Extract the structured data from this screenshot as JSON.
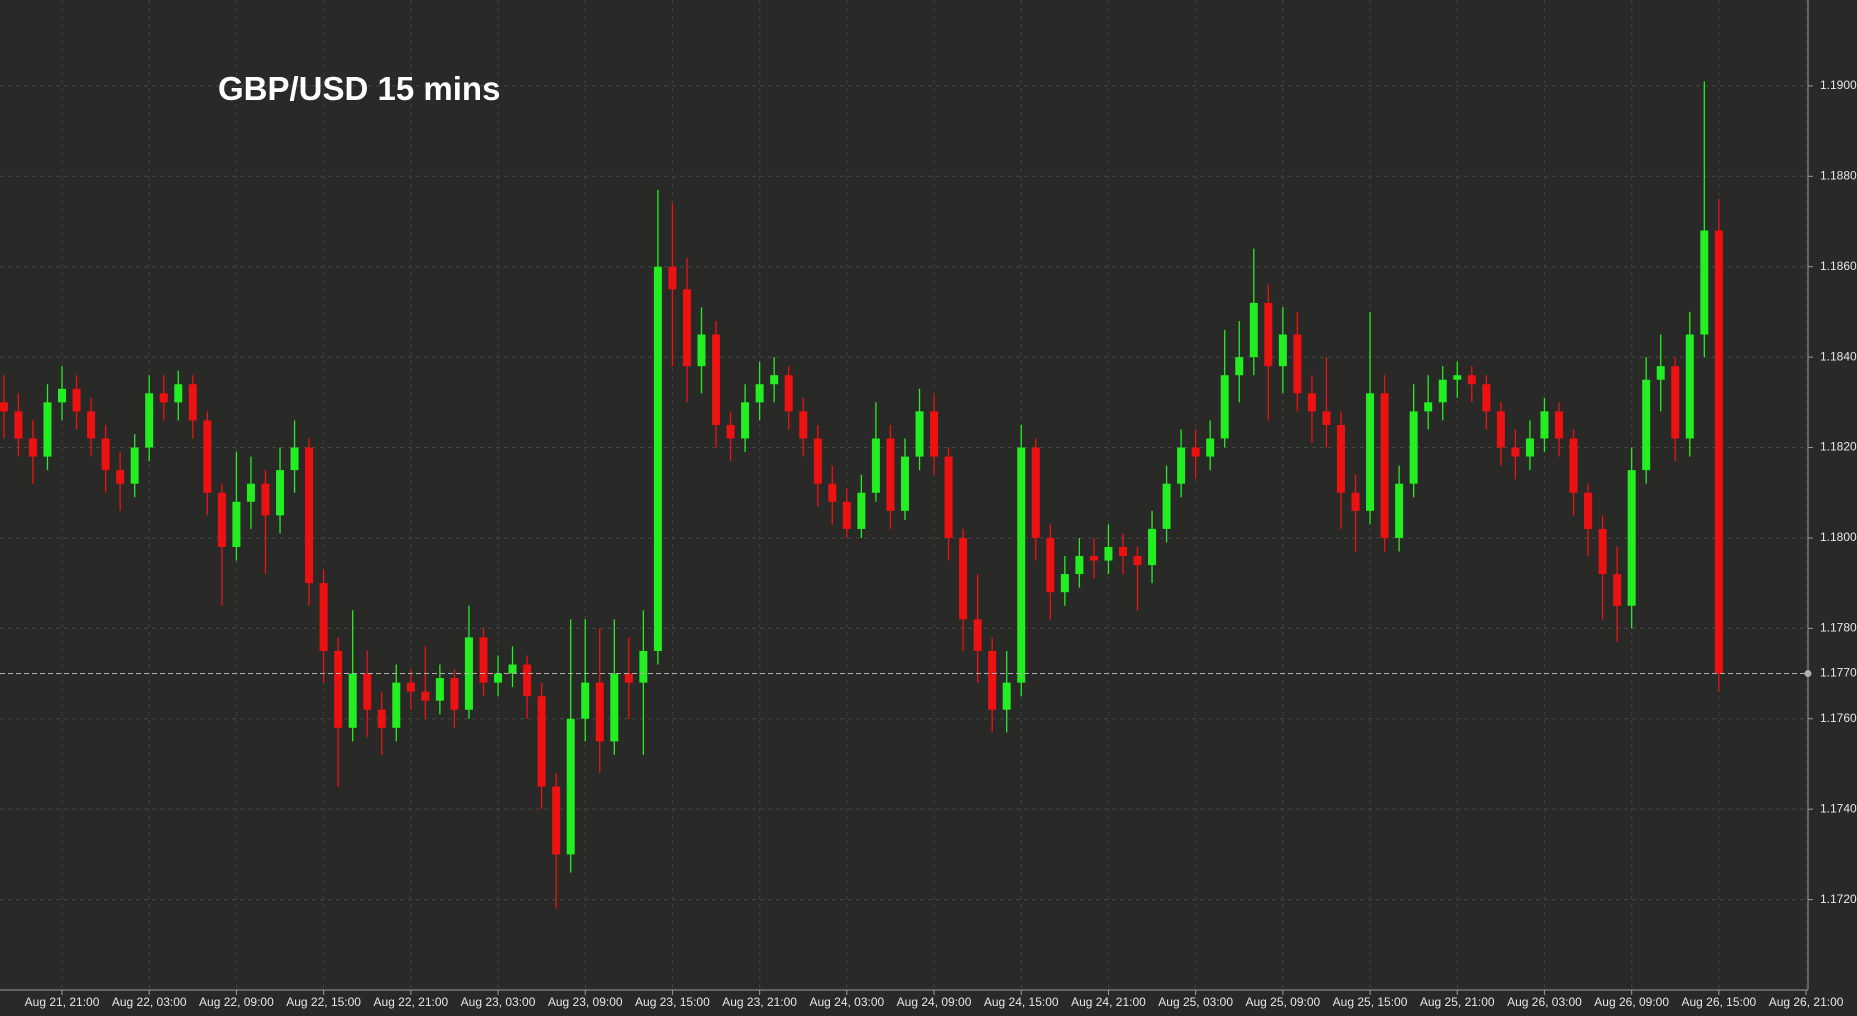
{
  "chart_data": {
    "type": "candlestick",
    "title": "GBP/USD 15 mins",
    "x": [
      "Aug 21, 17:00",
      "Aug 21, 18:00",
      "Aug 21, 19:00",
      "Aug 21, 20:00",
      "Aug 21, 21:00",
      "Aug 21, 22:00",
      "Aug 21, 23:00",
      "Aug 22, 00:00",
      "Aug 22, 01:00",
      "Aug 22, 02:00",
      "Aug 22, 03:00",
      "Aug 22, 04:00",
      "Aug 22, 05:00",
      "Aug 22, 06:00",
      "Aug 22, 07:00",
      "Aug 22, 08:00",
      "Aug 22, 09:00",
      "Aug 22, 10:00",
      "Aug 22, 11:00",
      "Aug 22, 12:00",
      "Aug 22, 13:00",
      "Aug 22, 14:00",
      "Aug 22, 15:00",
      "Aug 22, 16:00",
      "Aug 22, 17:00",
      "Aug 22, 18:00",
      "Aug 22, 19:00",
      "Aug 22, 20:00",
      "Aug 22, 21:00",
      "Aug 22, 22:00",
      "Aug 22, 23:00",
      "Aug 23, 00:00",
      "Aug 23, 01:00",
      "Aug 23, 02:00",
      "Aug 23, 03:00",
      "Aug 23, 04:00",
      "Aug 23, 05:00",
      "Aug 23, 06:00",
      "Aug 23, 07:00",
      "Aug 23, 08:00",
      "Aug 23, 09:00",
      "Aug 23, 10:00",
      "Aug 23, 11:00",
      "Aug 23, 12:00",
      "Aug 23, 13:00",
      "Aug 23, 14:00",
      "Aug 23, 15:00",
      "Aug 23, 16:00",
      "Aug 23, 17:00",
      "Aug 23, 18:00",
      "Aug 23, 19:00",
      "Aug 23, 20:00",
      "Aug 23, 21:00",
      "Aug 23, 22:00",
      "Aug 23, 23:00",
      "Aug 24, 00:00",
      "Aug 24, 01:00",
      "Aug 24, 02:00",
      "Aug 24, 03:00",
      "Aug 24, 04:00",
      "Aug 24, 05:00",
      "Aug 24, 06:00",
      "Aug 24, 07:00",
      "Aug 24, 08:00",
      "Aug 24, 09:00",
      "Aug 24, 10:00",
      "Aug 24, 11:00",
      "Aug 24, 12:00",
      "Aug 24, 13:00",
      "Aug 24, 14:00",
      "Aug 24, 15:00",
      "Aug 24, 16:00",
      "Aug 24, 17:00",
      "Aug 24, 18:00",
      "Aug 24, 19:00",
      "Aug 24, 20:00",
      "Aug 24, 21:00",
      "Aug 24, 22:00",
      "Aug 24, 23:00",
      "Aug 25, 00:00",
      "Aug 25, 01:00",
      "Aug 25, 02:00",
      "Aug 25, 03:00",
      "Aug 25, 04:00",
      "Aug 25, 05:00",
      "Aug 25, 06:00",
      "Aug 25, 07:00",
      "Aug 25, 08:00",
      "Aug 25, 09:00",
      "Aug 25, 10:00",
      "Aug 25, 11:00",
      "Aug 25, 12:00",
      "Aug 25, 13:00",
      "Aug 25, 14:00",
      "Aug 25, 15:00",
      "Aug 25, 16:00",
      "Aug 25, 17:00",
      "Aug 25, 18:00",
      "Aug 25, 19:00",
      "Aug 25, 20:00",
      "Aug 25, 21:00",
      "Aug 25, 22:00",
      "Aug 25, 23:00",
      "Aug 26, 00:00",
      "Aug 26, 01:00",
      "Aug 26, 02:00",
      "Aug 26, 03:00",
      "Aug 26, 04:00",
      "Aug 26, 05:00",
      "Aug 26, 06:00",
      "Aug 26, 07:00",
      "Aug 26, 08:00",
      "Aug 26, 09:00",
      "Aug 26, 10:00",
      "Aug 26, 11:00",
      "Aug 26, 12:00",
      "Aug 26, 13:00",
      "Aug 26, 14:00",
      "Aug 26, 15:00"
    ],
    "open": [
      1.183,
      1.1828,
      1.1822,
      1.1818,
      1.183,
      1.1833,
      1.1828,
      1.1822,
      1.1815,
      1.1812,
      1.182,
      1.1832,
      1.183,
      1.1834,
      1.1826,
      1.181,
      1.1798,
      1.1808,
      1.1812,
      1.1805,
      1.1815,
      1.182,
      1.179,
      1.1775,
      1.1758,
      1.177,
      1.1762,
      1.1758,
      1.1768,
      1.1766,
      1.1764,
      1.1769,
      1.1762,
      1.1778,
      1.1768,
      1.177,
      1.1772,
      1.1765,
      1.1745,
      1.173,
      1.176,
      1.1768,
      1.1755,
      1.177,
      1.1768,
      1.1775,
      1.186,
      1.1855,
      1.1838,
      1.1845,
      1.1825,
      1.1822,
      1.183,
      1.1834,
      1.1836,
      1.1828,
      1.1822,
      1.1812,
      1.1808,
      1.1802,
      1.181,
      1.1822,
      1.1806,
      1.1818,
      1.1828,
      1.1818,
      1.18,
      1.1782,
      1.1775,
      1.1762,
      1.1768,
      1.182,
      1.18,
      1.1788,
      1.1792,
      1.1796,
      1.1795,
      1.1798,
      1.1796,
      1.1794,
      1.1802,
      1.1812,
      1.182,
      1.1818,
      1.1822,
      1.1836,
      1.184,
      1.1852,
      1.1838,
      1.1845,
      1.1832,
      1.1828,
      1.1825,
      1.181,
      1.1806,
      1.1832,
      1.18,
      1.1812,
      1.1828,
      1.183,
      1.1835,
      1.1836,
      1.1834,
      1.1828,
      1.182,
      1.1818,
      1.1822,
      1.1828,
      1.1822,
      1.181,
      1.1802,
      1.1792,
      1.1785,
      1.1815,
      1.1835,
      1.1838,
      1.1822,
      1.1845,
      1.1868
    ],
    "high": [
      1.1836,
      1.1832,
      1.1826,
      1.1834,
      1.1838,
      1.1836,
      1.1831,
      1.1825,
      1.1819,
      1.1823,
      1.1836,
      1.1836,
      1.1837,
      1.1836,
      1.1828,
      1.1812,
      1.1819,
      1.1818,
      1.1815,
      1.182,
      1.1826,
      1.1822,
      1.1793,
      1.1778,
      1.1784,
      1.1775,
      1.1766,
      1.1772,
      1.1771,
      1.1776,
      1.1772,
      1.1771,
      1.1785,
      1.178,
      1.1774,
      1.1776,
      1.1774,
      1.1768,
      1.1748,
      1.1782,
      1.1782,
      1.178,
      1.1782,
      1.1778,
      1.1784,
      1.1877,
      1.1874,
      1.1862,
      1.1851,
      1.1848,
      1.1828,
      1.1834,
      1.1839,
      1.184,
      1.1838,
      1.1831,
      1.1825,
      1.1816,
      1.1811,
      1.1814,
      1.183,
      1.1825,
      1.1822,
      1.1833,
      1.1832,
      1.182,
      1.1802,
      1.1792,
      1.1778,
      1.1775,
      1.1825,
      1.1822,
      1.1803,
      1.1796,
      1.18,
      1.18,
      1.1803,
      1.1801,
      1.1798,
      1.1806,
      1.1816,
      1.1824,
      1.1824,
      1.1826,
      1.1846,
      1.1848,
      1.1864,
      1.1856,
      1.1851,
      1.185,
      1.1836,
      1.184,
      1.1828,
      1.1814,
      1.185,
      1.1836,
      1.1816,
      1.1834,
      1.1836,
      1.1838,
      1.1839,
      1.1838,
      1.1836,
      1.183,
      1.1824,
      1.1826,
      1.1831,
      1.183,
      1.1824,
      1.1812,
      1.1805,
      1.1798,
      1.182,
      1.184,
      1.1845,
      1.184,
      1.185,
      1.1901,
      1.1875
    ],
    "low": [
      1.1822,
      1.1818,
      1.1812,
      1.1815,
      1.1826,
      1.1824,
      1.1818,
      1.181,
      1.1806,
      1.1809,
      1.1817,
      1.1826,
      1.1826,
      1.1822,
      1.1805,
      1.1785,
      1.1795,
      1.1802,
      1.1792,
      1.1801,
      1.181,
      1.1785,
      1.1768,
      1.1745,
      1.1755,
      1.1756,
      1.1752,
      1.1755,
      1.1762,
      1.176,
      1.1761,
      1.1758,
      1.176,
      1.1765,
      1.1765,
      1.1767,
      1.176,
      1.174,
      1.1718,
      1.1726,
      1.1755,
      1.1748,
      1.1752,
      1.176,
      1.1752,
      1.1772,
      1.1838,
      1.183,
      1.1832,
      1.182,
      1.1817,
      1.1819,
      1.1826,
      1.183,
      1.1824,
      1.1818,
      1.1807,
      1.1803,
      1.18,
      1.18,
      1.1808,
      1.1802,
      1.1804,
      1.1815,
      1.1814,
      1.1795,
      1.1775,
      1.1768,
      1.1757,
      1.1757,
      1.1765,
      1.1795,
      1.1782,
      1.1785,
      1.1789,
      1.1791,
      1.1792,
      1.1792,
      1.1784,
      1.179,
      1.1799,
      1.1809,
      1.1813,
      1.1815,
      1.182,
      1.183,
      1.1836,
      1.1826,
      1.1832,
      1.1828,
      1.1821,
      1.182,
      1.1802,
      1.1797,
      1.1803,
      1.1797,
      1.1797,
      1.1809,
      1.1824,
      1.1826,
      1.1831,
      1.183,
      1.1824,
      1.1816,
      1.1813,
      1.1815,
      1.1819,
      1.1818,
      1.1805,
      1.1796,
      1.1782,
      1.1777,
      1.178,
      1.1812,
      1.1828,
      1.1817,
      1.1818,
      1.184,
      1.1766
    ],
    "close": [
      1.1828,
      1.1822,
      1.1818,
      1.183,
      1.1833,
      1.1828,
      1.1822,
      1.1815,
      1.1812,
      1.182,
      1.1832,
      1.183,
      1.1834,
      1.1826,
      1.181,
      1.1798,
      1.1808,
      1.1812,
      1.1805,
      1.1815,
      1.182,
      1.179,
      1.1775,
      1.1758,
      1.177,
      1.1762,
      1.1758,
      1.1768,
      1.1766,
      1.1764,
      1.1769,
      1.1762,
      1.1778,
      1.1768,
      1.177,
      1.1772,
      1.1765,
      1.1745,
      1.173,
      1.176,
      1.1768,
      1.1755,
      1.177,
      1.1768,
      1.1775,
      1.186,
      1.1855,
      1.1838,
      1.1845,
      1.1825,
      1.1822,
      1.183,
      1.1834,
      1.1836,
      1.1828,
      1.1822,
      1.1812,
      1.1808,
      1.1802,
      1.181,
      1.1822,
      1.1806,
      1.1818,
      1.1828,
      1.1818,
      1.18,
      1.1782,
      1.1775,
      1.1762,
      1.1768,
      1.182,
      1.18,
      1.1788,
      1.1792,
      1.1796,
      1.1795,
      1.1798,
      1.1796,
      1.1794,
      1.1802,
      1.1812,
      1.182,
      1.1818,
      1.1822,
      1.1836,
      1.184,
      1.1852,
      1.1838,
      1.1845,
      1.1832,
      1.1828,
      1.1825,
      1.181,
      1.1806,
      1.1832,
      1.18,
      1.1812,
      1.1828,
      1.183,
      1.1835,
      1.1836,
      1.1834,
      1.1828,
      1.182,
      1.1818,
      1.1822,
      1.1828,
      1.1822,
      1.181,
      1.1802,
      1.1792,
      1.1785,
      1.1815,
      1.1835,
      1.1838,
      1.1822,
      1.1845,
      1.1868,
      1.177
    ],
    "up_color": "#22ee22",
    "down_color": "#ee1111",
    "xlim": [
      "Aug 21, 16:44",
      "Aug 26, 21:08"
    ],
    "xticks": [
      "Aug 21, 21:00",
      "Aug 22, 03:00",
      "Aug 22, 09:00",
      "Aug 22, 15:00",
      "Aug 22, 21:00",
      "Aug 23, 03:00",
      "Aug 23, 09:00",
      "Aug 23, 15:00",
      "Aug 23, 21:00",
      "Aug 24, 03:00",
      "Aug 24, 09:00",
      "Aug 24, 15:00",
      "Aug 24, 21:00",
      "Aug 25, 03:00",
      "Aug 25, 09:00",
      "Aug 25, 15:00",
      "Aug 25, 21:00",
      "Aug 26, 03:00",
      "Aug 26, 09:00",
      "Aug 26, 15:00",
      "Aug 26, 21:00"
    ],
    "ylim": [
      1.17,
      1.1919
    ],
    "yticks": [
      {
        "value": 1.172,
        "label": "1.1720"
      },
      {
        "value": 1.174,
        "label": "1.1740"
      },
      {
        "value": 1.176,
        "label": "1.1760"
      },
      {
        "value": 1.178,
        "label": "1.1780"
      },
      {
        "value": 1.18,
        "label": "1.1800"
      },
      {
        "value": 1.182,
        "label": "1.1820"
      },
      {
        "value": 1.184,
        "label": "1.1840"
      },
      {
        "value": 1.186,
        "label": "1.1860"
      },
      {
        "value": 1.188,
        "label": "1.1880"
      },
      {
        "value": 1.19,
        "label": "1.1900"
      }
    ],
    "last_price": {
      "value": 1.177,
      "label": "1.1770"
    },
    "grid": true
  }
}
